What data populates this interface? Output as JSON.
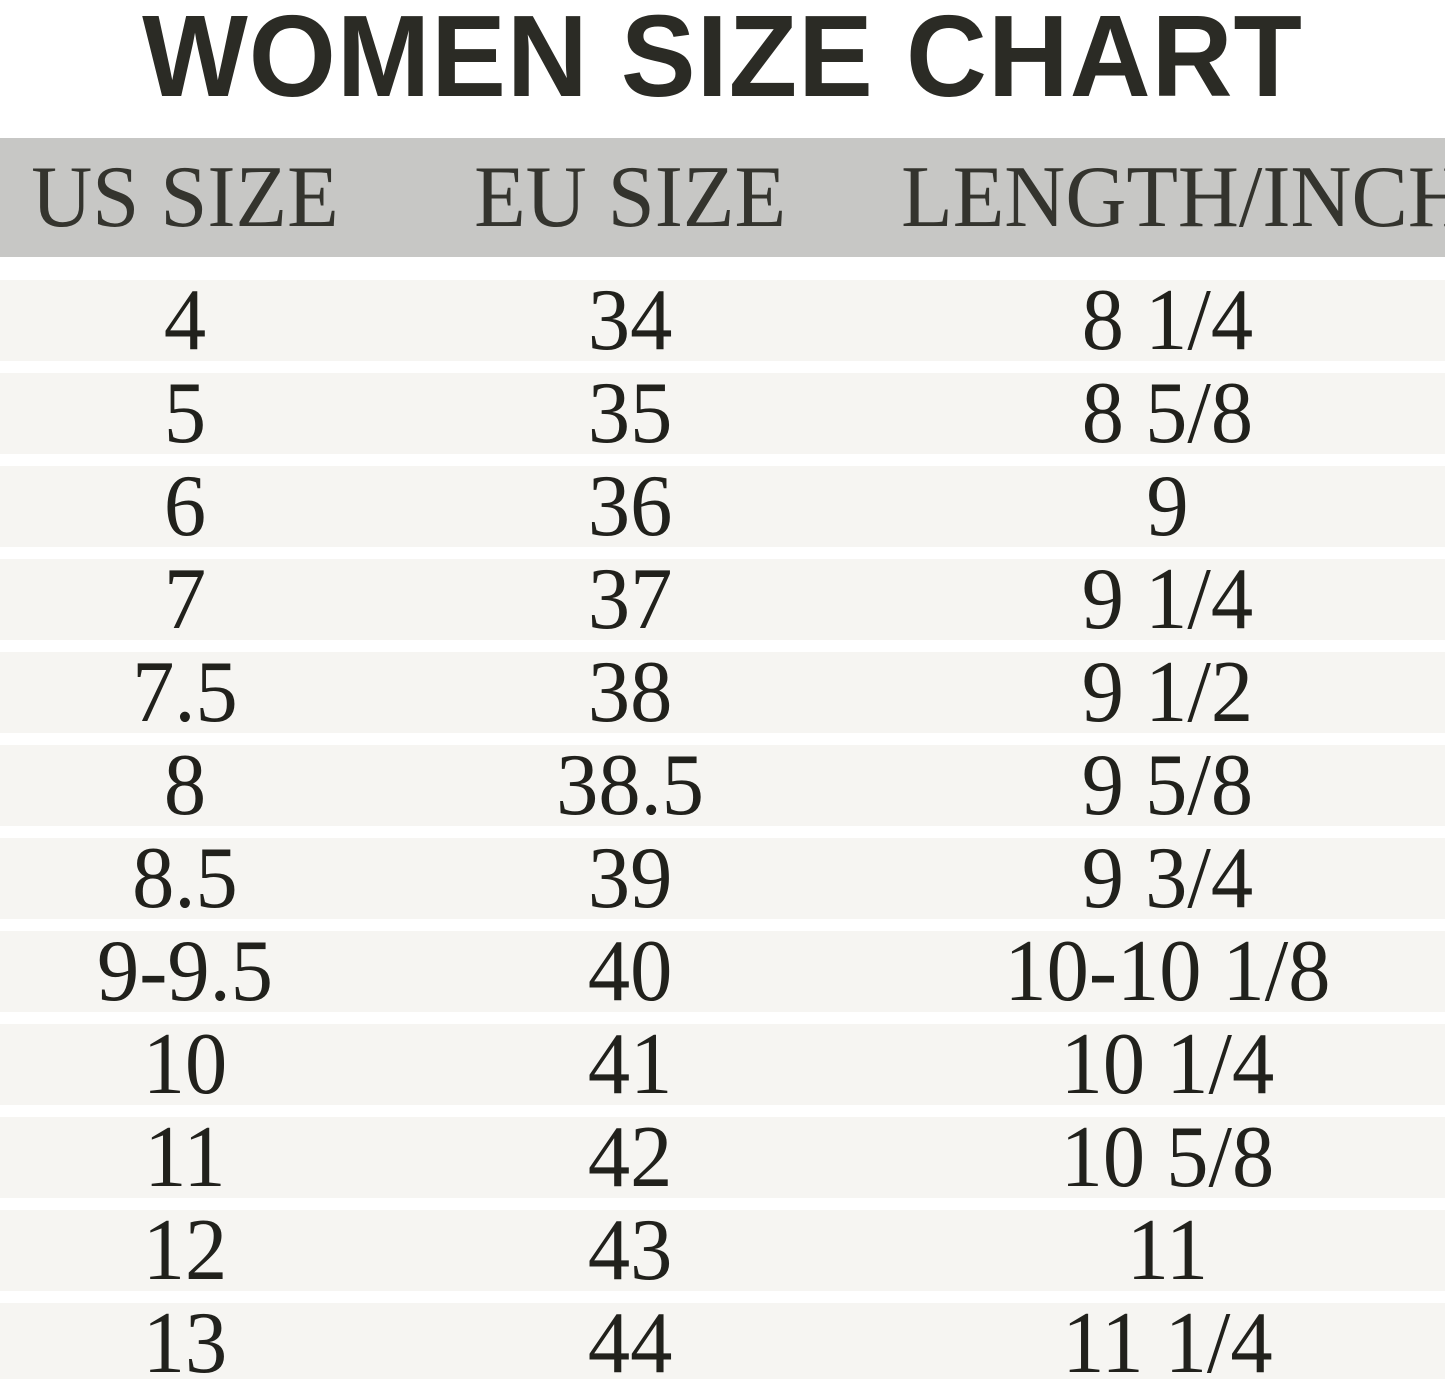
{
  "title": "WOMEN SIZE CHART",
  "chart_data": {
    "type": "table",
    "title": "WOMEN SIZE CHART",
    "columns": [
      "US SIZE",
      "EU SIZE",
      "LENGTH/INCH"
    ],
    "rows": [
      [
        "4",
        "34",
        "8 1/4"
      ],
      [
        "5",
        "35",
        "8 5/8"
      ],
      [
        "6",
        "36",
        "9"
      ],
      [
        "7",
        "37",
        "9 1/4"
      ],
      [
        "7.5",
        "38",
        "9 1/2"
      ],
      [
        "8",
        "38.5",
        "9 5/8"
      ],
      [
        "8.5",
        "39",
        "9 3/4"
      ],
      [
        "9-9.5",
        "40",
        "10-10 1/8"
      ],
      [
        "10",
        "41",
        "10 1/4"
      ],
      [
        "11",
        "42",
        "10 5/8"
      ],
      [
        "12",
        "43",
        "11"
      ],
      [
        "13",
        "44",
        "11 1/4"
      ]
    ]
  },
  "colors": {
    "header_bg": "#c7c7c5",
    "row_bg": "#f6f5f2",
    "title_text": "#2b2b25",
    "header_text": "#34342e",
    "cell_text": "#21211c",
    "page_bg": "#ffffff"
  }
}
